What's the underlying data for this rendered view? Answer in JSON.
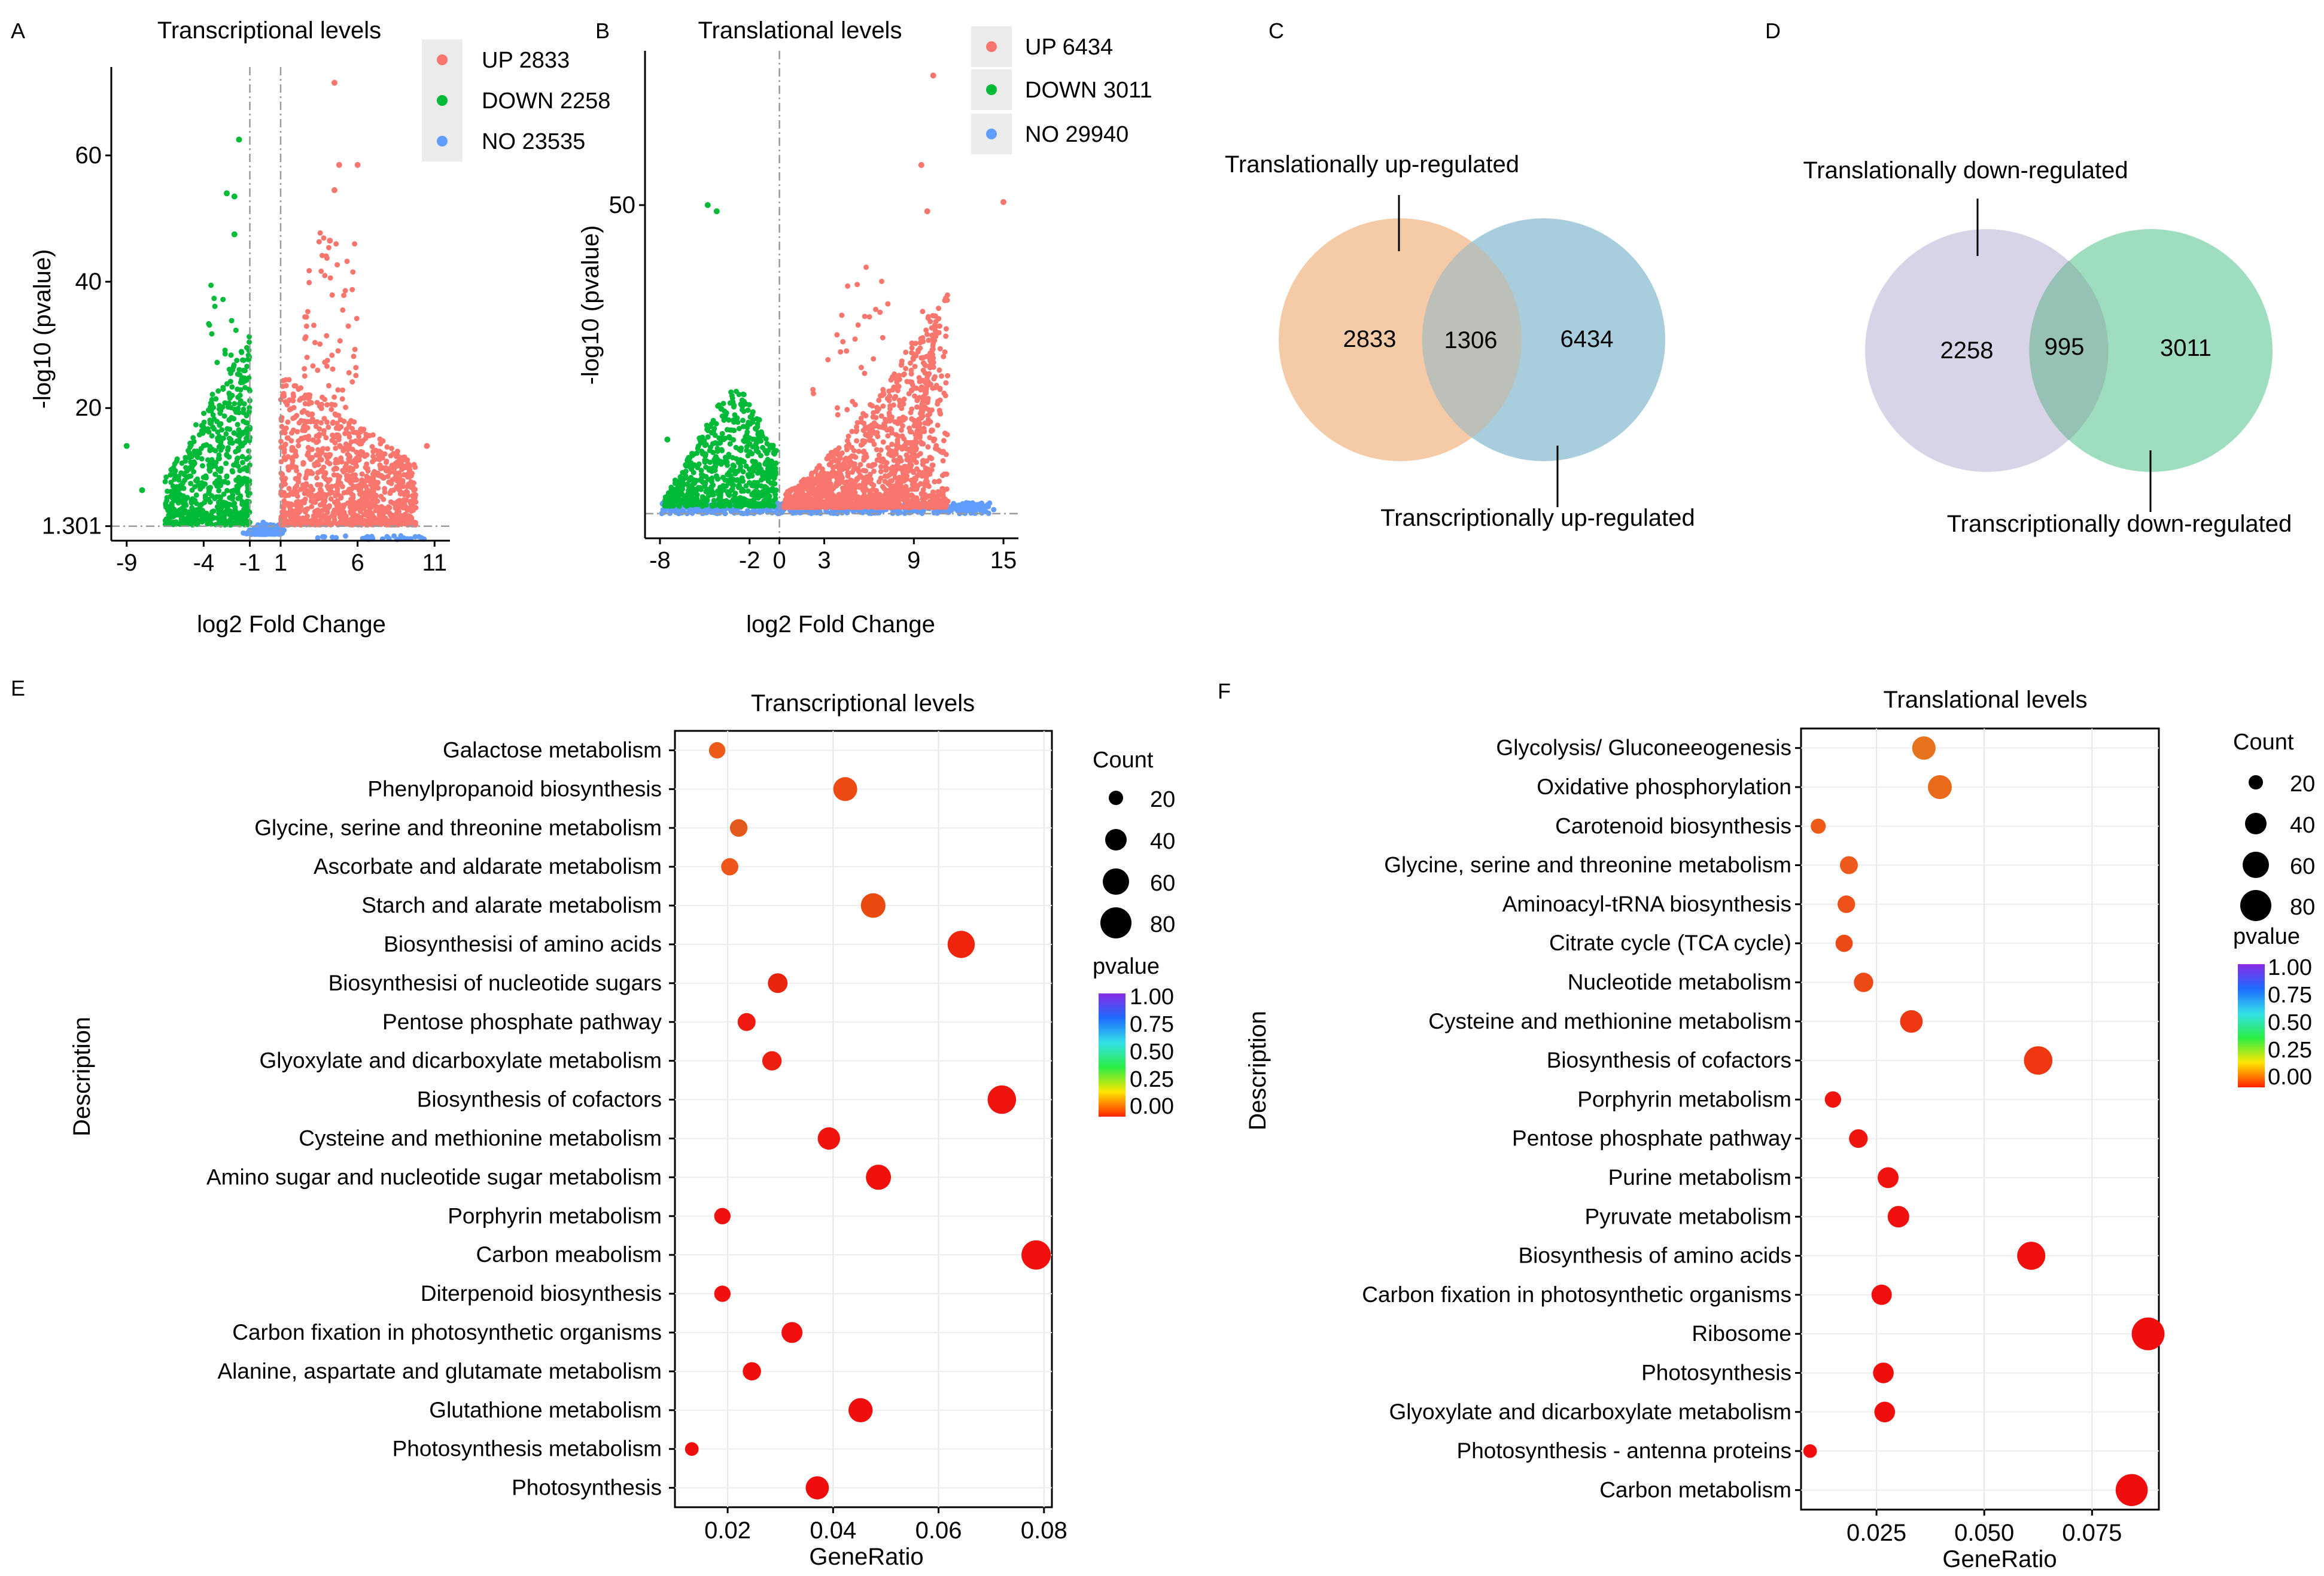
{
  "panels": {
    "A": {
      "letter": "A",
      "chart_data": {
        "type": "scatter",
        "title": "Transcriptional levels",
        "xlabel": "log2 Fold Change",
        "ylabel": "-log10 (pvalue)",
        "xlim": [
          -10,
          12
        ],
        "ylim": [
          -1,
          74
        ],
        "x_ticks": [
          -9,
          -4,
          -1,
          1,
          6,
          11
        ],
        "y_ticks": [
          1.301,
          20,
          40,
          60
        ],
        "y_tick_labels": [
          "1.301",
          "20",
          "40",
          "60"
        ],
        "threshold_lines": {
          "x": [
            -1,
            1
          ],
          "y": 1.301
        },
        "legend": [
          {
            "label": "UP 2833",
            "color": "#F8766D"
          },
          {
            "label": "DOWN 2258",
            "color": "#00BA38"
          },
          {
            "label": "NO 23535",
            "color": "#619CFF"
          }
        ],
        "highlight_points": [
          [
            4.5,
            71.5
          ],
          [
            6.0,
            58.5
          ],
          [
            4.8,
            58.5
          ],
          [
            4.5,
            54.5
          ],
          [
            4.2,
            46.5
          ],
          [
            -1.7,
            62.5
          ],
          [
            -2.5,
            54
          ],
          [
            -2.0,
            53.5
          ],
          [
            -2.0,
            47.5
          ],
          [
            -9.0,
            14
          ],
          [
            -8.0,
            7
          ],
          [
            10.5,
            14
          ]
        ]
      }
    },
    "B": {
      "letter": "B",
      "chart_data": {
        "type": "scatter",
        "title": "Translational levels",
        "xlabel": "log2 Fold Change",
        "ylabel": "-log10 (pvalue)",
        "xlim": [
          -9,
          16
        ],
        "ylim": [
          -4,
          75
        ],
        "x_ticks": [
          -8,
          -2,
          0,
          3,
          9,
          15
        ],
        "y_ticks": [
          50
        ],
        "y_tick_labels": [
          "50"
        ],
        "threshold_lines": {
          "x": [
            0
          ],
          "y": 0
        },
        "legend": [
          {
            "label": "UP 6434",
            "color": "#F8766D"
          },
          {
            "label": "DOWN 3011",
            "color": "#00BA38"
          },
          {
            "label": "NO 29940",
            "color": "#619CFF"
          }
        ],
        "highlight_points": [
          [
            10.3,
            71.0
          ],
          [
            9.5,
            56.5
          ],
          [
            15.0,
            50.5
          ],
          [
            9.9,
            49.0
          ],
          [
            -4.2,
            49.0
          ],
          [
            -4.8,
            50.0
          ],
          [
            -7.5,
            12.0
          ],
          [
            -3.9,
            17.0
          ]
        ]
      }
    },
    "C": {
      "letter": "C",
      "chart_data": {
        "type": "venn",
        "sets": [
          {
            "name": "Translationally up-regulated",
            "unique": 2833,
            "color": "#F4CBA6"
          },
          {
            "name": "Transcriptionally up-regulated",
            "unique": 6434,
            "color": "#A8CEDD"
          }
        ],
        "overlap": 1306,
        "overlap_color": "#BDC0B8"
      },
      "labels": {
        "top": "Translationally up-regulated",
        "bottom": "Transcriptionally up-regulated",
        "left": "2833",
        "middle": "1306",
        "right": "6434"
      }
    },
    "D": {
      "letter": "D",
      "chart_data": {
        "type": "venn",
        "sets": [
          {
            "name": "Translationally down-regulated",
            "unique": 2258,
            "color": "#D9D3E8"
          },
          {
            "name": "Transcriptionally down-regulated",
            "unique": 3011,
            "color": "#9EDDBE"
          }
        ],
        "overlap": 995,
        "overlap_color": "#95C2B4"
      },
      "labels": {
        "top": "Translationally down-regulated",
        "bottom": "Transcriptionally down-regulated",
        "left": "2258",
        "middle": "995",
        "right": "3011"
      }
    },
    "E": {
      "letter": "E",
      "chart_data": {
        "type": "scatter",
        "title": "Transcriptional levels",
        "xlabel": "GeneRatio",
        "ylabel": "Description",
        "xlim": [
          0.01,
          0.0815
        ],
        "x_ticks": [
          0.02,
          0.04,
          0.06,
          0.08
        ],
        "x_tick_labels": [
          "0.02",
          "0.04",
          "0.06",
          "0.08"
        ],
        "size_legend": {
          "title": "Count",
          "values": [
            20,
            40,
            60,
            80
          ]
        },
        "color_legend": {
          "title": "pvalue",
          "ticks": [
            "1.00",
            "0.75",
            "0.50",
            "0.25",
            "0.00"
          ],
          "colors": [
            "#8A2BE2",
            "#1E6CFF",
            "#33E0E8",
            "#2AEE44",
            "#FFE600",
            "#FF2200"
          ]
        },
        "categories": [
          "Galactose metabolism",
          "Phenylpropanoid biosynthesis",
          "Glycine, serine and threonine metabolism",
          "Ascorbate and aldarate metabolism",
          "Starch and alarate metabolism",
          "Biosynthesisi of amino acids",
          "Biosynthesisi of nucleotide sugars",
          "Pentose phosphate pathway",
          "Glyoxylate and dicarboxylate metabolism",
          "Biosynthesis of cofactors",
          "Cysteine and methionine metabolism",
          "Amino sugar and nucleotide sugar metabolism",
          "Porphyrin metabolism",
          "Carbon meabolism",
          "Diterpenoid biosynthesis",
          "Carbon fixation in photosynthetic organisms",
          "Alanine, aspartate and glutamate metabolism",
          "Glutathione metabolism",
          "Photosynthesis metabolism",
          "Photosynthesis"
        ],
        "gene_ratio": [
          0.018,
          0.0423,
          0.0221,
          0.0204,
          0.0476,
          0.0643,
          0.0295,
          0.0236,
          0.0284,
          0.072,
          0.0392,
          0.0486,
          0.019,
          0.0785,
          0.019,
          0.0322,
          0.0246,
          0.0452,
          0.0132,
          0.037
        ],
        "count": [
          14,
          38,
          17,
          16,
          41,
          52,
          23,
          18,
          22,
          58,
          32,
          43,
          14,
          62,
          14,
          27,
          19,
          39,
          8,
          35
        ],
        "color": [
          "#EE5A1A",
          "#EE4A14",
          "#E45A1E",
          "#EE561A",
          "#E84A10",
          "#EF250E",
          "#E9240E",
          "#F01A10",
          "#EE1E10",
          "#F0140E",
          "#F0130E",
          "#F0110D",
          "#F0100D",
          "#F0100D",
          "#F0100D",
          "#F00F0D",
          "#F00E0D",
          "#F00E0D",
          "#F00D0D",
          "#F00D0D"
        ]
      }
    },
    "F": {
      "letter": "F",
      "chart_data": {
        "type": "scatter",
        "title": "Translational levels",
        "xlabel": "GeneRatio",
        "ylabel": "Description",
        "xlim": [
          0.0075,
          0.0905
        ],
        "x_ticks": [
          0.025,
          0.05,
          0.075
        ],
        "x_tick_labels": [
          "0.025",
          "0.050",
          "0.075"
        ],
        "size_legend": {
          "title": "Count",
          "values": [
            20,
            40,
            60,
            80
          ]
        },
        "color_legend": {
          "title": "pvalue",
          "ticks": [
            "1.00",
            "0.75",
            "0.50",
            "0.25",
            "0.00"
          ],
          "colors": [
            "#8A2BE2",
            "#1E6CFF",
            "#33E0E8",
            "#2AEE44",
            "#FFE600",
            "#FF2200"
          ]
        },
        "categories": [
          "Glycolysis/ Gluconeeogenesis",
          "Oxidative phosphorylation",
          "Carotenoid biosynthesis",
          "Glycine, serine and threonine metabolism",
          "Aminoacyl-tRNA biosynthesis",
          "Citrate cycle (TCA cycle)",
          "Nucleotide metabolism",
          "Cysteine and methionine metabolism",
          "Biosynthesis of cofactors",
          "Porphyrin metabolism",
          "Pentose phosphate pathway",
          "Purine metabolism",
          "Pyruvate metabolism",
          "Biosynthesis of amino acids",
          "Carbon fixation in photosynthetic organisms",
          "Ribosome",
          "Photosynthesis",
          "Glyoxylate and dicarboxylate metabolism",
          "Photosynthesis - antenna proteins",
          "Carbon metabolism"
        ],
        "gene_ratio": [
          0.036,
          0.0397,
          0.0115,
          0.0186,
          0.018,
          0.0175,
          0.022,
          0.0331,
          0.0625,
          0.0149,
          0.0208,
          0.0277,
          0.0301,
          0.0609,
          0.0262,
          0.088,
          0.0266,
          0.0269,
          0.0096,
          0.0842
        ],
        "count": [
          36,
          38,
          11,
          18,
          17,
          16,
          22,
          33,
          58,
          14,
          20,
          27,
          29,
          56,
          25,
          81,
          26,
          26,
          8,
          77
        ],
        "color": [
          "#E8731E",
          "#E86A1A",
          "#EE5A18",
          "#EE5A1C",
          "#EE521A",
          "#EE4A16",
          "#EE4A16",
          "#EE3812",
          "#EE3812",
          "#F0140E",
          "#F0140E",
          "#F0120E",
          "#F0100D",
          "#F0100D",
          "#F00F0D",
          "#F00E0D",
          "#F00E0D",
          "#F00E0D",
          "#F00D0D",
          "#F00D0D"
        ]
      }
    }
  }
}
